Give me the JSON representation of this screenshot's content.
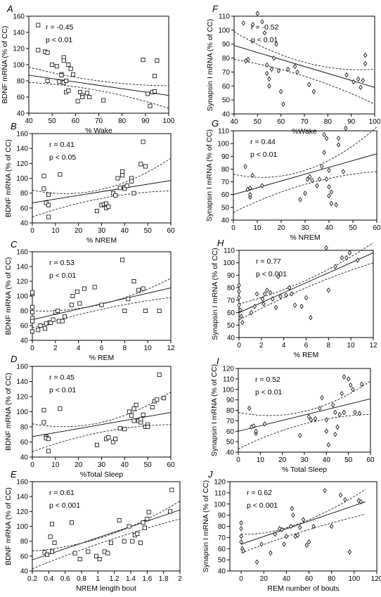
{
  "chart_data": [
    {
      "type": "scatter",
      "panel_label": "A",
      "xlabel": "% Wake",
      "ylabel": "BDNF mRNA (% of CC)",
      "xlim": [
        40,
        100
      ],
      "ylim": [
        40,
        160
      ],
      "xticks": [
        40,
        50,
        60,
        70,
        80,
        90,
        100
      ],
      "yticks": [
        40,
        60,
        80,
        100,
        120,
        140,
        160
      ],
      "r_label": "r = -0.45",
      "p_label": "p < 0.01",
      "marker": "square",
      "regression": {
        "x1": 40,
        "y1": 87,
        "x2": 100,
        "y2": 62
      },
      "ci_upper": [
        [
          40,
          97
        ],
        [
          70,
          80
        ],
        [
          100,
          74
        ]
      ],
      "ci_lower": [
        [
          40,
          78
        ],
        [
          70,
          68
        ],
        [
          100,
          46
        ]
      ],
      "x": [
        44,
        44,
        47,
        48,
        48,
        50,
        52,
        53,
        54,
        54,
        55,
        55,
        55,
        56,
        56,
        57,
        57,
        58,
        59,
        61,
        62,
        63,
        63,
        65,
        66,
        72,
        89,
        91,
        92,
        93,
        94,
        94,
        95
      ],
      "y": [
        149,
        118,
        116,
        115,
        80,
        100,
        98,
        79,
        88,
        87,
        78,
        109,
        105,
        80,
        66,
        100,
        68,
        95,
        88,
        55,
        66,
        62,
        60,
        65,
        60,
        56,
        106,
        64,
        49,
        66,
        86,
        67,
        105
      ]
    },
    {
      "type": "scatter",
      "panel_label": "B",
      "xlabel": "% NREM",
      "ylabel": "BDNF mRNA (% of CC)",
      "xlim": [
        0,
        60
      ],
      "ylim": [
        40,
        160
      ],
      "xticks": [
        0,
        10,
        20,
        30,
        40,
        50,
        60
      ],
      "yticks": [
        40,
        60,
        80,
        100,
        120,
        140,
        160
      ],
      "r_label": "r = 0.41",
      "p_label": "p < 0.05",
      "marker": "square",
      "regression": {
        "x1": 0,
        "y1": 67,
        "x2": 60,
        "y2": 97
      },
      "ci_upper": [
        [
          0,
          84
        ],
        [
          30,
          85
        ],
        [
          60,
          127
        ]
      ],
      "ci_lower": [
        [
          0,
          48
        ],
        [
          30,
          73
        ],
        [
          60,
          83
        ]
      ],
      "x": [
        5,
        5,
        6,
        7,
        7,
        7,
        12,
        28,
        30,
        31,
        32,
        32,
        33,
        35,
        36,
        37,
        38,
        39,
        39,
        40,
        40,
        41,
        43,
        43,
        44,
        47,
        48,
        49
      ],
      "y": [
        103,
        86,
        67,
        64,
        48,
        78,
        105,
        56,
        64,
        65,
        60,
        66,
        62,
        80,
        77,
        100,
        87,
        104,
        109,
        88,
        86,
        90,
        100,
        96,
        80,
        119,
        149,
        116
      ]
    },
    {
      "type": "scatter",
      "panel_label": "C",
      "xlabel": "% REM",
      "ylabel": "BDNF mRNA (% of CC)",
      "xlim": [
        0,
        12
      ],
      "ylim": [
        40,
        160
      ],
      "xticks": [
        0,
        2,
        4,
        6,
        8,
        10,
        12
      ],
      "yticks": [
        40,
        60,
        80,
        100,
        120,
        140,
        160
      ],
      "r_label": "r = 0.53",
      "p_label": "p < 0.01",
      "marker": "square",
      "regression": {
        "x1": 0,
        "y1": 68,
        "x2": 12,
        "y2": 111
      },
      "ci_upper": [
        [
          0,
          80
        ],
        [
          6,
          89
        ],
        [
          12,
          124
        ]
      ],
      "ci_lower": [
        [
          0,
          57
        ],
        [
          6,
          82
        ],
        [
          12,
          98
        ]
      ],
      "x": [
        0,
        0,
        0,
        0,
        0,
        0,
        0,
        0.5,
        0.7,
        1.1,
        1.2,
        1.5,
        1.6,
        1.8,
        2.0,
        2.2,
        2.3,
        2.6,
        2.8,
        3.4,
        3.5,
        3.9,
        4.1,
        4.5,
        5.4,
        6.0,
        7.8,
        8.0,
        8.3,
        8.8,
        9.2,
        9.6,
        9.8,
        11.0
      ],
      "y": [
        103,
        105,
        85,
        78,
        70,
        66,
        52,
        54,
        60,
        56,
        63,
        64,
        64,
        68,
        78,
        80,
        66,
        66,
        72,
        88,
        100,
        106,
        90,
        110,
        112,
        88,
        149,
        80,
        96,
        120,
        108,
        110,
        80,
        80
      ]
    },
    {
      "type": "scatter",
      "panel_label": "D",
      "xlabel": "%Total Sleep",
      "ylabel": "BDNF mRNA (% of CC)",
      "xlim": [
        0,
        60
      ],
      "ylim": [
        40,
        160
      ],
      "xticks": [
        0,
        10,
        20,
        30,
        40,
        50,
        60
      ],
      "yticks": [
        40,
        60,
        80,
        100,
        120,
        140,
        160
      ],
      "r_label": "r = 0.45",
      "p_label": "p < 0.01",
      "marker": "square",
      "regression": {
        "x1": 0,
        "y1": 67,
        "x2": 60,
        "y2": 99
      },
      "ci_upper": [
        [
          0,
          84
        ],
        [
          30,
          86
        ],
        [
          60,
          126
        ]
      ],
      "ci_lower": [
        [
          0,
          47
        ],
        [
          30,
          73
        ],
        [
          60,
          83
        ]
      ],
      "x": [
        5,
        5,
        6,
        6,
        7,
        7,
        12,
        28,
        32,
        33,
        35,
        36,
        38,
        40,
        42,
        43,
        44,
        44,
        45,
        46,
        47,
        47,
        48,
        49,
        50,
        50,
        52,
        53,
        54,
        55,
        57
      ],
      "y": [
        102,
        86,
        67,
        65,
        48,
        64,
        104,
        56,
        64,
        66,
        60,
        64,
        78,
        77,
        100,
        95,
        88,
        104,
        109,
        88,
        86,
        90,
        96,
        80,
        83,
        80,
        106,
        114,
        116,
        149,
        118
      ]
    },
    {
      "type": "scatter",
      "panel_label": "E",
      "xlabel": "NREM length bout",
      "ylabel": "BDNF mRNA (% of CC)",
      "xlim": [
        0.2,
        2.0
      ],
      "ylim": [
        40,
        160
      ],
      "xticks": [
        0.2,
        0.4,
        0.6,
        0.8,
        1.0,
        1.2,
        1.4,
        1.6,
        1.8,
        2.0
      ],
      "yticks": [
        40,
        60,
        80,
        100,
        120,
        140,
        160
      ],
      "r_label": "r = 0.61",
      "p_label": "p < 0.001",
      "marker": "square",
      "regression": {
        "x1": 0.2,
        "y1": 55,
        "x2": 2.0,
        "y2": 122
      },
      "ci_upper": [
        [
          0.2,
          67
        ],
        [
          1.1,
          87
        ],
        [
          2.0,
          134
        ]
      ],
      "ci_lower": [
        [
          0.2,
          43
        ],
        [
          1.1,
          80
        ],
        [
          2.0,
          110
        ]
      ],
      "x": [
        0.35,
        0.38,
        0.42,
        0.44,
        0.44,
        0.47,
        0.68,
        0.72,
        0.78,
        0.88,
        0.98,
        1.02,
        1.08,
        1.12,
        1.16,
        1.26,
        1.32,
        1.38,
        1.42,
        1.45,
        1.48,
        1.52,
        1.55,
        1.57,
        1.6,
        1.62,
        1.88,
        1.9
      ],
      "y": [
        65,
        62,
        86,
        103,
        66,
        78,
        105,
        64,
        56,
        66,
        60,
        56,
        66,
        64,
        78,
        108,
        80,
        100,
        80,
        88,
        90,
        78,
        105,
        98,
        110,
        119,
        120,
        149
      ]
    },
    {
      "type": "scatter",
      "panel_label": "F",
      "xlabel": "%Wake",
      "ylabel": "Synapsin I mRNA (% of CC)",
      "xlim": [
        40,
        100
      ],
      "ylim": [
        40,
        110
      ],
      "xticks": [
        40,
        50,
        60,
        70,
        80,
        90,
        100
      ],
      "yticks": [
        40,
        50,
        60,
        70,
        80,
        90,
        100,
        110
      ],
      "r_label": "r = -0.52",
      "p_label": "p < 0.01",
      "marker": "diamond",
      "regression": {
        "x1": 40,
        "y1": 89,
        "x2": 100,
        "y2": 59
      },
      "ci_upper": [
        [
          40,
          99
        ],
        [
          70,
          77
        ],
        [
          100,
          72
        ]
      ],
      "ci_lower": [
        [
          40,
          79
        ],
        [
          70,
          67
        ],
        [
          100,
          47
        ]
      ],
      "x": [
        44,
        45,
        46,
        48,
        50,
        52,
        53,
        54,
        54,
        55,
        55,
        56,
        57,
        58,
        59,
        60,
        61,
        63,
        66,
        67,
        72,
        74,
        88,
        91,
        93,
        94,
        95,
        96,
        96
      ],
      "y": [
        105,
        78,
        79,
        104,
        112,
        106,
        98,
        75,
        69,
        65,
        60,
        72,
        80,
        90,
        71,
        56,
        47,
        72,
        74,
        70,
        61,
        56,
        68,
        63,
        65,
        59,
        64,
        82,
        76
      ]
    },
    {
      "type": "scatter",
      "panel_label": "G",
      "xlabel": "% NREM",
      "ylabel": "Synapsin I mRNA (% of CC)",
      "xlim": [
        0,
        60
      ],
      "ylim": [
        40,
        110
      ],
      "xticks": [
        0,
        10,
        20,
        30,
        40,
        50,
        60
      ],
      "yticks": [
        40,
        50,
        60,
        70,
        80,
        90,
        100,
        110
      ],
      "r_label": "r = 0.44",
      "p_label": "p < 0.01",
      "marker": "diamond",
      "regression": {
        "x1": 0,
        "y1": 60,
        "x2": 60,
        "y2": 92
      },
      "ci_upper": [
        [
          0,
          76
        ],
        [
          30,
          79
        ],
        [
          60,
          113
        ]
      ],
      "ci_lower": [
        [
          0,
          46
        ],
        [
          30,
          68
        ],
        [
          60,
          78
        ]
      ],
      "x": [
        5,
        6,
        7,
        7,
        7,
        8,
        12,
        28,
        30,
        31,
        32,
        33,
        35,
        36,
        37,
        38,
        38,
        39,
        39,
        40,
        40,
        40,
        41,
        41,
        43,
        44,
        44,
        46,
        47
      ],
      "y": [
        82,
        64,
        65,
        58,
        60,
        75,
        67,
        56,
        61,
        72,
        74,
        71,
        67,
        72,
        82,
        93,
        107,
        104,
        72,
        79,
        66,
        59,
        62,
        53,
        52,
        99,
        104,
        78,
        112
      ]
    },
    {
      "type": "scatter",
      "panel_label": "H",
      "xlabel": "% REM",
      "ylabel": "Synapsin I mRNA (% of CC)",
      "xlim": [
        0,
        12
      ],
      "ylim": [
        40,
        110
      ],
      "xticks": [
        0,
        2,
        4,
        6,
        8,
        10,
        12
      ],
      "yticks": [
        40,
        50,
        60,
        70,
        80,
        90,
        100,
        110
      ],
      "r_label": "r = 0.77",
      "p_label": "p < 0.001",
      "marker": "diamond",
      "regression": {
        "x1": 0,
        "y1": 60,
        "x2": 12,
        "y2": 108
      },
      "ci_upper": [
        [
          0,
          67
        ],
        [
          6,
          86
        ],
        [
          12,
          116
        ]
      ],
      "ci_lower": [
        [
          0,
          54
        ],
        [
          6,
          80
        ],
        [
          12,
          100
        ]
      ],
      "x": [
        0,
        0,
        0,
        0,
        0.1,
        0.2,
        0.3,
        1.1,
        1.4,
        1.6,
        2.1,
        2.2,
        2.3,
        2.5,
        2.8,
        3.0,
        3.3,
        3.5,
        3.7,
        4.2,
        4.5,
        4.7,
        5.0,
        5.6,
        6.0,
        6.4,
        7.8,
        8.0,
        8.6,
        9.2,
        9.6,
        9.9,
        10.6
      ],
      "y": [
        82,
        77,
        72,
        66,
        62,
        57,
        52,
        60,
        65,
        75,
        71,
        67,
        75,
        78,
        76,
        71,
        64,
        89,
        73,
        74,
        80,
        75,
        66,
        65,
        72,
        56,
        112,
        78,
        97,
        104,
        104,
        108,
        102
      ]
    },
    {
      "type": "scatter",
      "panel_label": "I",
      "xlabel": "% Total Sleep",
      "ylabel": "Synapsin I mRNA (% of CC)",
      "xlim": [
        0,
        60
      ],
      "ylim": [
        40,
        120
      ],
      "xticks": [
        0,
        10,
        20,
        30,
        40,
        50,
        60
      ],
      "yticks": [
        40,
        50,
        60,
        70,
        80,
        90,
        100,
        110,
        120
      ],
      "r_label": "r = 0.52",
      "p_label": "p < 0.01",
      "marker": "diamond",
      "regression": {
        "x1": 0,
        "y1": 60,
        "x2": 60,
        "y2": 91
      },
      "ci_upper": [
        [
          0,
          78
        ],
        [
          30,
          79
        ],
        [
          60,
          108
        ]
      ],
      "ci_lower": [
        [
          0,
          43
        ],
        [
          30,
          67
        ],
        [
          60,
          76
        ]
      ],
      "x": [
        5,
        6,
        7,
        8,
        8,
        12,
        28,
        32,
        33,
        35,
        37,
        38,
        40,
        40,
        41,
        43,
        44,
        44,
        45,
        46,
        47,
        48,
        48,
        50,
        51,
        52,
        53,
        55,
        56
      ],
      "y": [
        82,
        64,
        65,
        58,
        60,
        67,
        56,
        74,
        71,
        72,
        82,
        92,
        71,
        60,
        47,
        85,
        78,
        57,
        64,
        76,
        96,
        78,
        112,
        110,
        104,
        100,
        78,
        77,
        105
      ]
    },
    {
      "type": "scatter",
      "panel_label": "J",
      "xlabel": "REM number of bouts",
      "ylabel": "Synapsin I mRNA (% of CC)",
      "xlim": [
        -10,
        120
      ],
      "ylim": [
        40,
        120
      ],
      "xticks": [
        0,
        20,
        40,
        60,
        80,
        100,
        120
      ],
      "yticks": [
        40,
        50,
        60,
        70,
        80,
        90,
        100,
        110,
        120
      ],
      "r_label": "r = 0.62",
      "p_label": "p < 0.001",
      "marker": "diamond",
      "regression": {
        "x1": 0,
        "y1": 64,
        "x2": 110,
        "y2": 102
      },
      "ci_upper": [
        [
          0,
          73
        ],
        [
          50,
          82
        ],
        [
          110,
          113
        ]
      ],
      "ci_lower": [
        [
          0,
          56
        ],
        [
          50,
          74
        ],
        [
          110,
          91
        ]
      ],
      "x": [
        0,
        0,
        0,
        0,
        1,
        2,
        14,
        18,
        26,
        30,
        34,
        36,
        38,
        40,
        44,
        45,
        46,
        48,
        50,
        52,
        55,
        58,
        60,
        64,
        74,
        80,
        88,
        92,
        96,
        104,
        106
      ],
      "y": [
        83,
        78,
        71,
        66,
        60,
        58,
        48,
        64,
        56,
        73,
        78,
        77,
        64,
        71,
        80,
        96,
        90,
        71,
        72,
        79,
        86,
        63,
        66,
        80,
        112,
        80,
        108,
        104,
        57,
        103,
        102
      ]
    }
  ]
}
